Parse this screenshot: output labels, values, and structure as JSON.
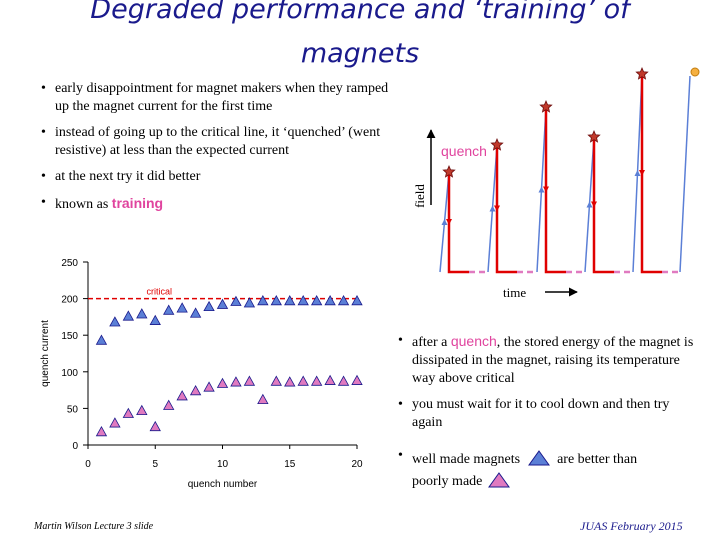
{
  "title": "Degraded performance and ‘training’ of magnets",
  "bullets_left": [
    {
      "text": "early disappointment for magnet makers when they ramped up the magnet current for the first time"
    },
    {
      "text": "instead of going up to the critical line, it ‘quenched’ (went resistive) at less than the expected current"
    },
    {
      "text": "at the next try it did better"
    },
    {
      "pre": "known as ",
      "em": "training"
    }
  ],
  "diagram": {
    "quench_label": "quench",
    "field_label": "field",
    "time_label": "time"
  },
  "bullets_right": [
    {
      "pre": "after a ",
      "em": "quench",
      "post": ", the stored energy of the magnet is dissipated in the magnet, raising its temperature way above critical"
    },
    {
      "text": "you must wait for it to cool down and then try again"
    },
    {
      "pre": "well made magnets",
      "mid": "are better than",
      "post": "poorly made"
    }
  ],
  "footer_left": "Martin Wilson Lecture 3 slide",
  "footer_right": "JUAS February 2015",
  "colors": {
    "title": "#1a1a8c",
    "highlight": "#e0449e",
    "good_marker": "#5b7fd6",
    "poor_marker": "#e07ac0",
    "critical_line": "#e00000"
  },
  "chart_data": {
    "type": "scatter",
    "xlabel": "quench number",
    "ylabel": "quench current",
    "xlim": [
      0,
      20
    ],
    "ylim": [
      0,
      250
    ],
    "xticks": [
      0,
      5,
      10,
      15,
      20
    ],
    "yticks": [
      0,
      50,
      100,
      150,
      200,
      250
    ],
    "critical_label": "critical",
    "critical_value": 200,
    "series": [
      {
        "marker": "good",
        "points": [
          [
            1,
            143
          ],
          [
            2,
            168
          ],
          [
            3,
            176
          ],
          [
            4,
            179
          ],
          [
            5,
            170
          ],
          [
            6,
            184
          ],
          [
            7,
            187
          ],
          [
            8,
            180
          ],
          [
            9,
            189
          ],
          [
            10,
            192
          ],
          [
            11,
            196
          ],
          [
            12,
            194
          ],
          [
            13,
            197
          ],
          [
            14,
            197
          ],
          [
            15,
            197
          ],
          [
            16,
            197
          ],
          [
            17,
            197
          ],
          [
            18,
            197
          ],
          [
            19,
            197
          ],
          [
            20,
            197
          ]
        ]
      },
      {
        "marker": "poor",
        "points": [
          [
            1,
            18
          ],
          [
            2,
            30
          ],
          [
            3,
            43
          ],
          [
            4,
            47
          ],
          [
            5,
            25
          ],
          [
            6,
            54
          ],
          [
            7,
            67
          ],
          [
            8,
            74
          ],
          [
            9,
            79
          ],
          [
            10,
            84
          ],
          [
            11,
            86
          ],
          [
            12,
            87
          ],
          [
            13,
            62
          ],
          [
            14,
            87
          ],
          [
            15,
            86
          ],
          [
            16,
            87
          ],
          [
            17,
            87
          ],
          [
            18,
            88
          ],
          [
            19,
            87
          ],
          [
            20,
            88
          ]
        ]
      }
    ]
  }
}
